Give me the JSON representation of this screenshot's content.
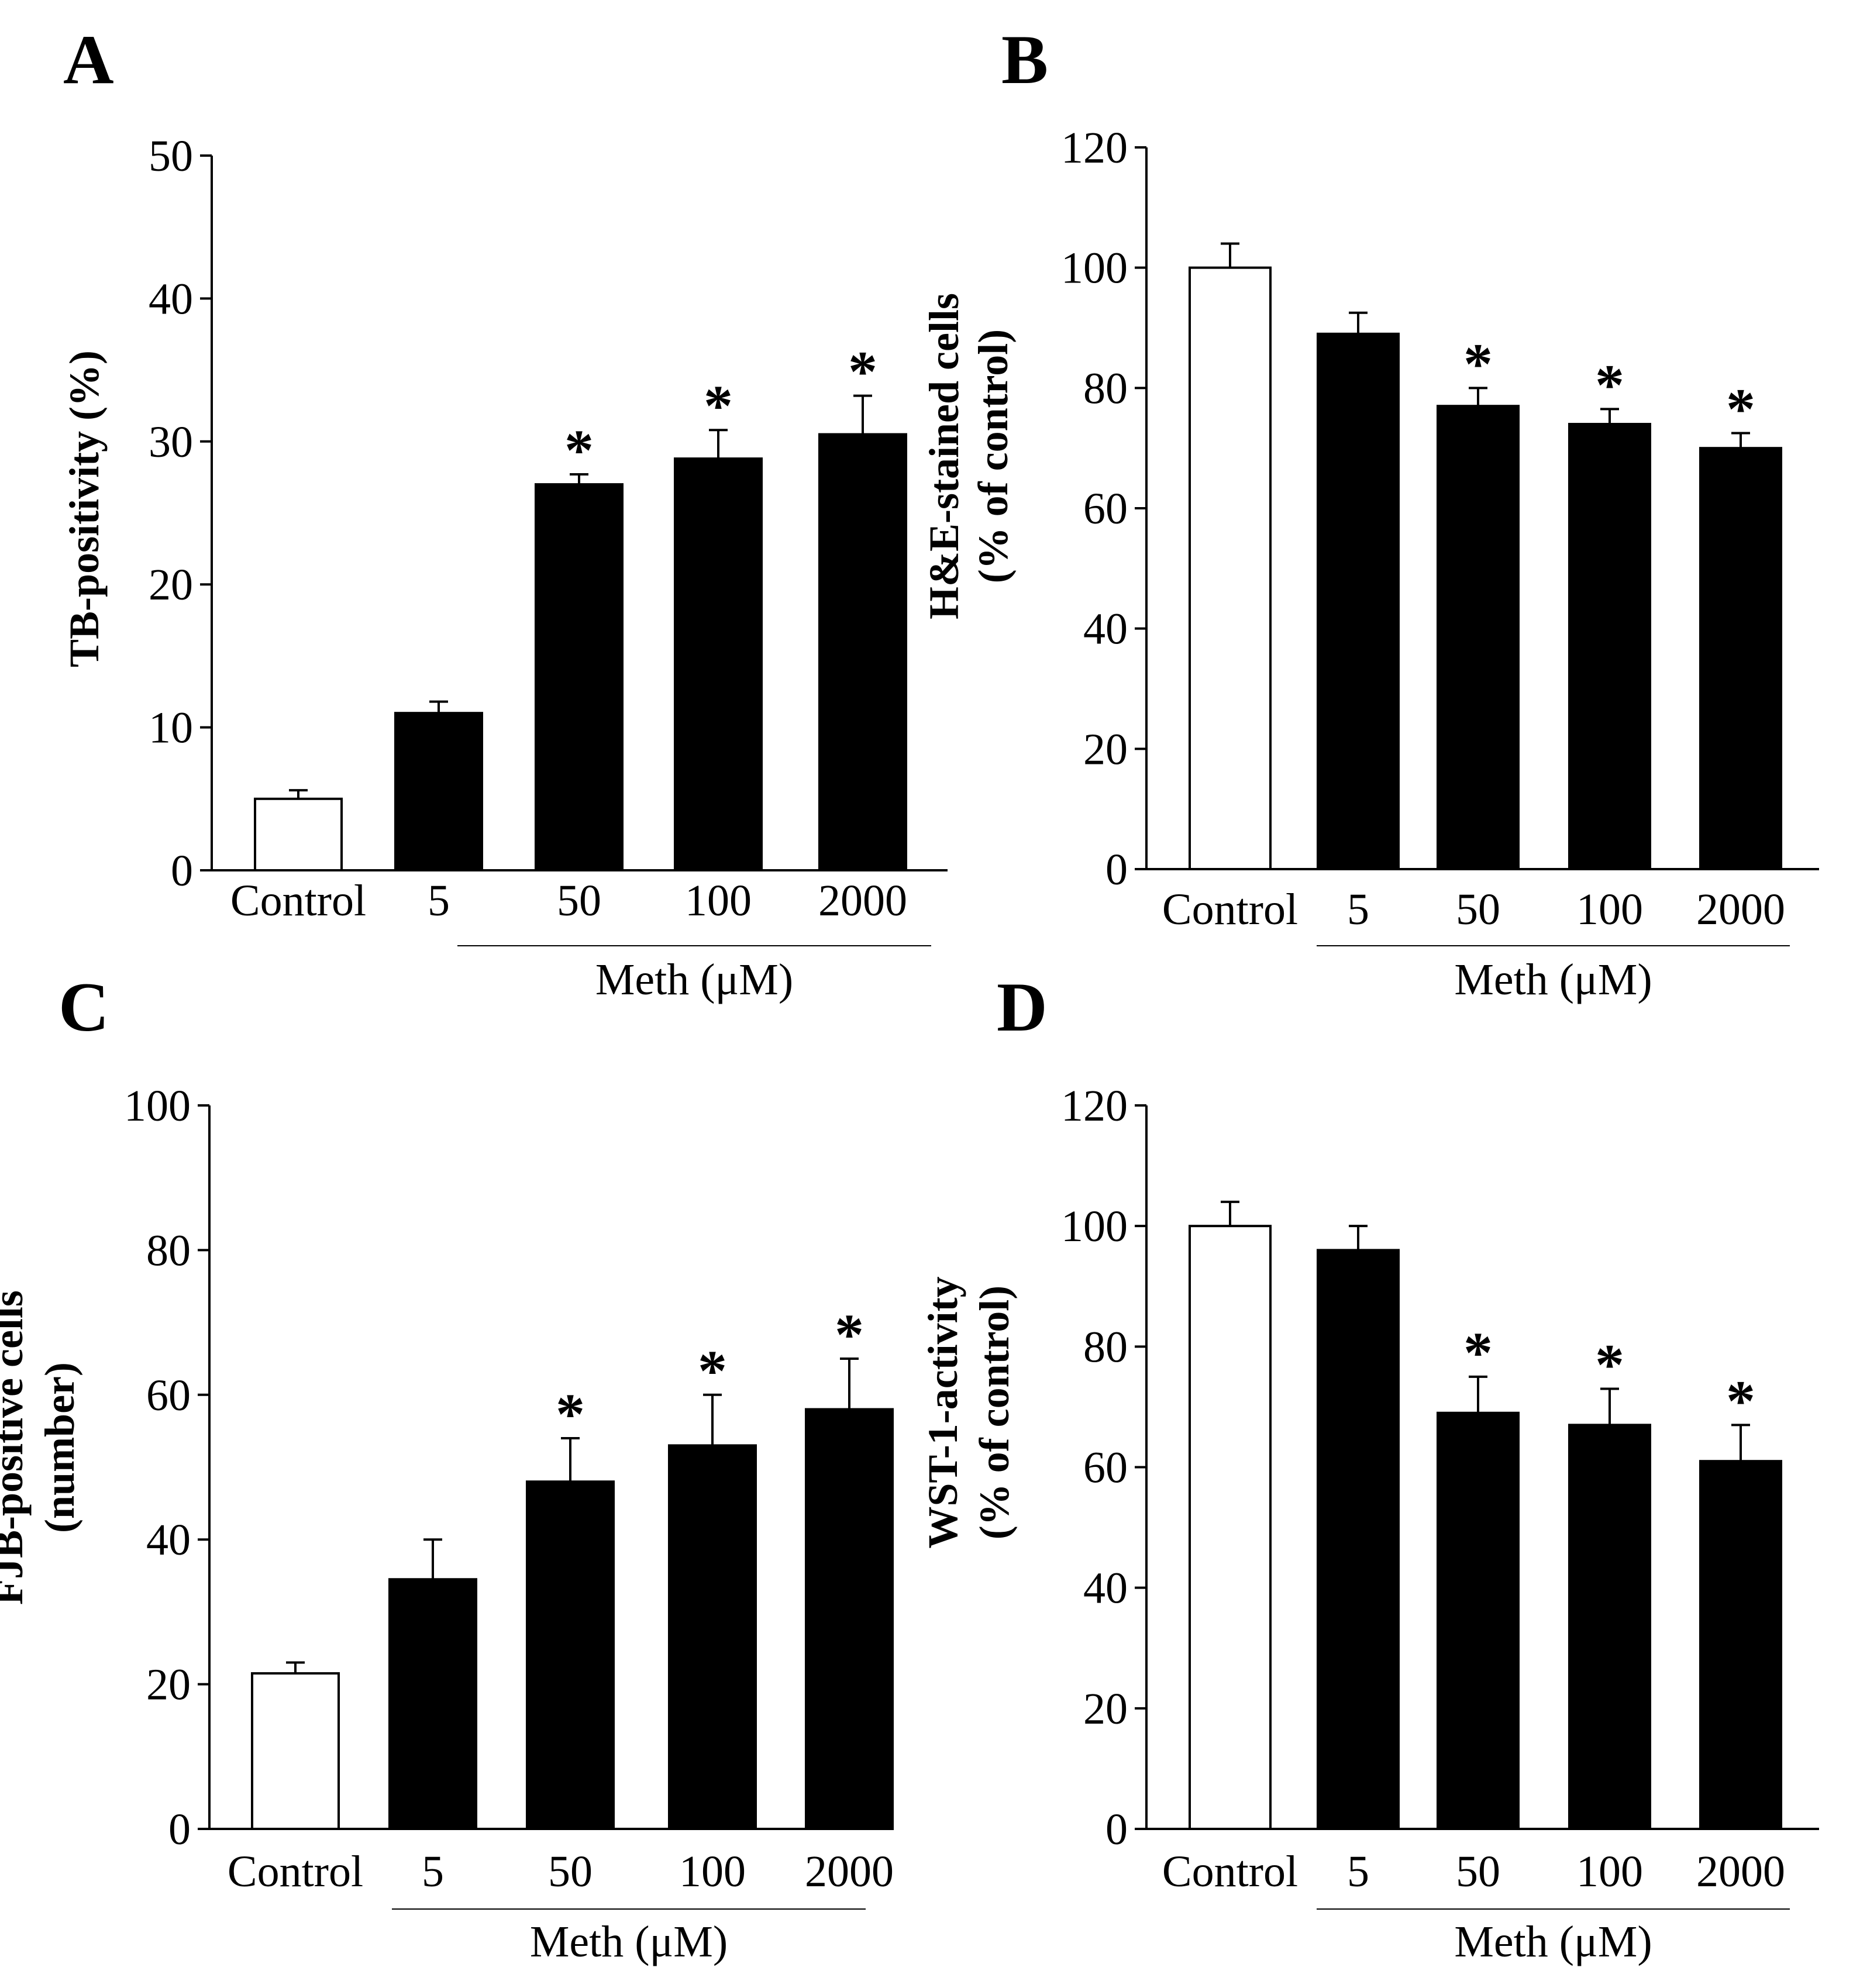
{
  "figure": {
    "panels": [
      "A",
      "B",
      "C",
      "D"
    ]
  },
  "chart_data": [
    {
      "type": "bar",
      "panel": "A",
      "categories": [
        "Control",
        "5",
        "50",
        "100",
        "2000"
      ],
      "values": [
        5,
        11,
        27,
        28.8,
        30.5
      ],
      "errors": [
        0.6,
        0.8,
        0.7,
        2.0,
        2.7
      ],
      "significant": [
        false,
        false,
        true,
        true,
        true
      ],
      "bar_colors": [
        "#ffffff",
        "#000000",
        "#000000",
        "#000000",
        "#000000"
      ],
      "ylabel": [
        "TB-positivity (%)"
      ],
      "ylim": [
        0,
        50
      ],
      "yticks": [
        0,
        10,
        20,
        30,
        40,
        50
      ],
      "group_label": "Meth (μM)",
      "significance_mark": "*"
    },
    {
      "type": "bar",
      "panel": "B",
      "categories": [
        "Control",
        "5",
        "50",
        "100",
        "2000"
      ],
      "values": [
        100,
        89,
        77,
        74,
        70
      ],
      "errors": [
        4,
        3.5,
        3,
        2.5,
        2.5
      ],
      "significant": [
        false,
        false,
        true,
        true,
        true
      ],
      "bar_colors": [
        "#ffffff",
        "#000000",
        "#000000",
        "#000000",
        "#000000"
      ],
      "ylabel": [
        "H&E-stained cells",
        "(% of control)"
      ],
      "ylim": [
        0,
        120
      ],
      "yticks": [
        0,
        20,
        40,
        60,
        80,
        100,
        120
      ],
      "group_label": "Meth (μM)",
      "significance_mark": "*"
    },
    {
      "type": "bar",
      "panel": "C",
      "categories": [
        "Control",
        "5",
        "50",
        "100",
        "2000"
      ],
      "values": [
        21.5,
        34.5,
        48,
        53,
        58
      ],
      "errors": [
        1.5,
        5.5,
        6,
        7,
        7
      ],
      "significant": [
        false,
        false,
        true,
        true,
        true
      ],
      "bar_colors": [
        "#ffffff",
        "#000000",
        "#000000",
        "#000000",
        "#000000"
      ],
      "ylabel": [
        "FJB-positive cells",
        "(number)"
      ],
      "ylim": [
        0,
        100
      ],
      "yticks": [
        0,
        20,
        40,
        60,
        80,
        100
      ],
      "group_label": "Meth (μM)",
      "significance_mark": "*"
    },
    {
      "type": "bar",
      "panel": "D",
      "categories": [
        "Control",
        "5",
        "50",
        "100",
        "2000"
      ],
      "values": [
        100,
        96,
        69,
        67,
        61
      ],
      "errors": [
        4,
        4,
        6,
        6,
        6
      ],
      "significant": [
        false,
        false,
        true,
        true,
        true
      ],
      "bar_colors": [
        "#ffffff",
        "#000000",
        "#000000",
        "#000000",
        "#000000"
      ],
      "ylabel": [
        "WST-1-activity",
        "(% of control)"
      ],
      "ylim": [
        0,
        120
      ],
      "yticks": [
        0,
        20,
        40,
        60,
        80,
        100,
        120
      ],
      "group_label": "Meth (μM)",
      "significance_mark": "*"
    }
  ]
}
